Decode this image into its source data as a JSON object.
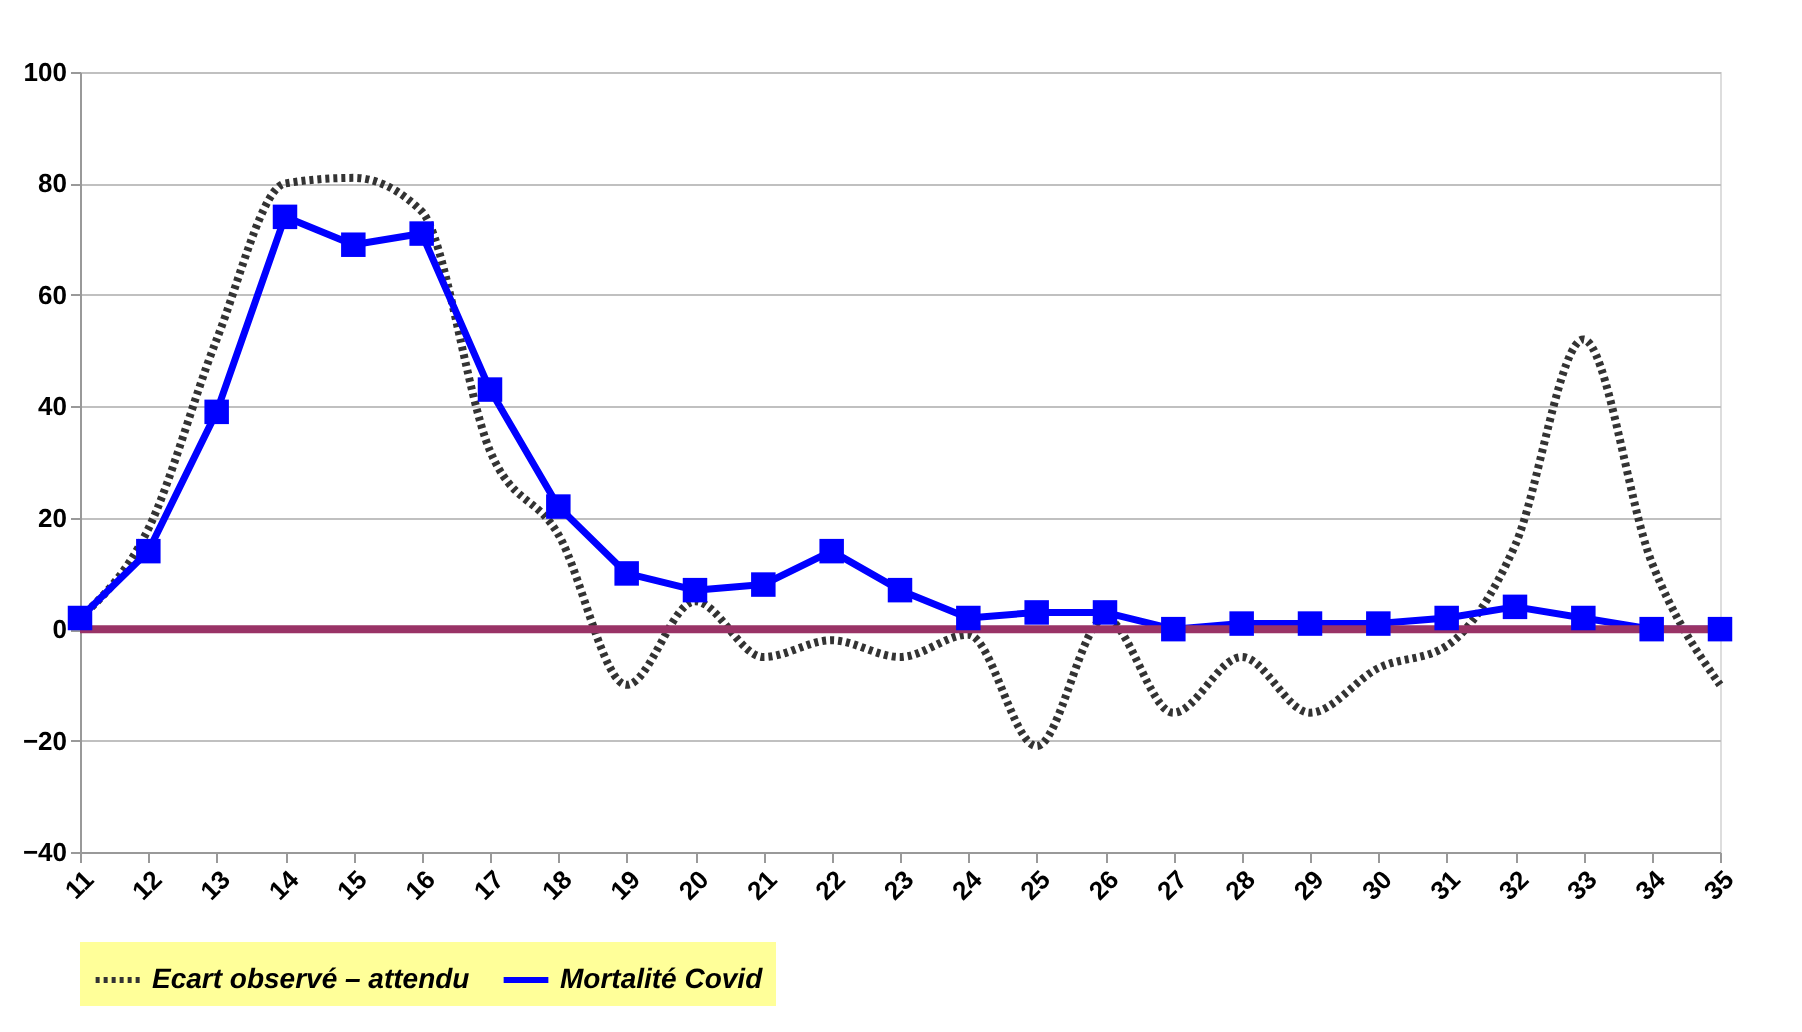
{
  "chart_data": {
    "type": "line",
    "categories": [
      "11",
      "12",
      "13",
      "14",
      "15",
      "16",
      "17",
      "18",
      "19",
      "20",
      "21",
      "22",
      "23",
      "24",
      "25",
      "26",
      "27",
      "28",
      "29",
      "30",
      "31",
      "32",
      "33",
      "34",
      "35"
    ],
    "series": [
      {
        "name": "Ecart observé – attendu",
        "color": "#333333",
        "line_style": "dotted",
        "marker": "none",
        "values": [
          2,
          18,
          52,
          80,
          81,
          75,
          32,
          17,
          -10,
          5,
          -5,
          -2,
          -5,
          -1,
          -21,
          2,
          -15,
          -5,
          -15,
          -7,
          -3,
          15,
          52,
          12,
          -10
        ]
      },
      {
        "name": "Mortalité Covid",
        "color": "#0000ff",
        "line_style": "solid",
        "marker": "square",
        "values": [
          2,
          14,
          39,
          74,
          69,
          71,
          43,
          22,
          10,
          7,
          8,
          14,
          7,
          2,
          3,
          3,
          0,
          1,
          1,
          1,
          2,
          4,
          2,
          0,
          0
        ]
      }
    ],
    "ylim": [
      -40,
      100
    ],
    "yticks": [
      -40,
      -20,
      0,
      20,
      40,
      60,
      80,
      100
    ],
    "grid": "y",
    "legend": "bottom",
    "ref_lines": [
      {
        "axis": "y",
        "value": 0,
        "color": "#993366"
      }
    ]
  }
}
